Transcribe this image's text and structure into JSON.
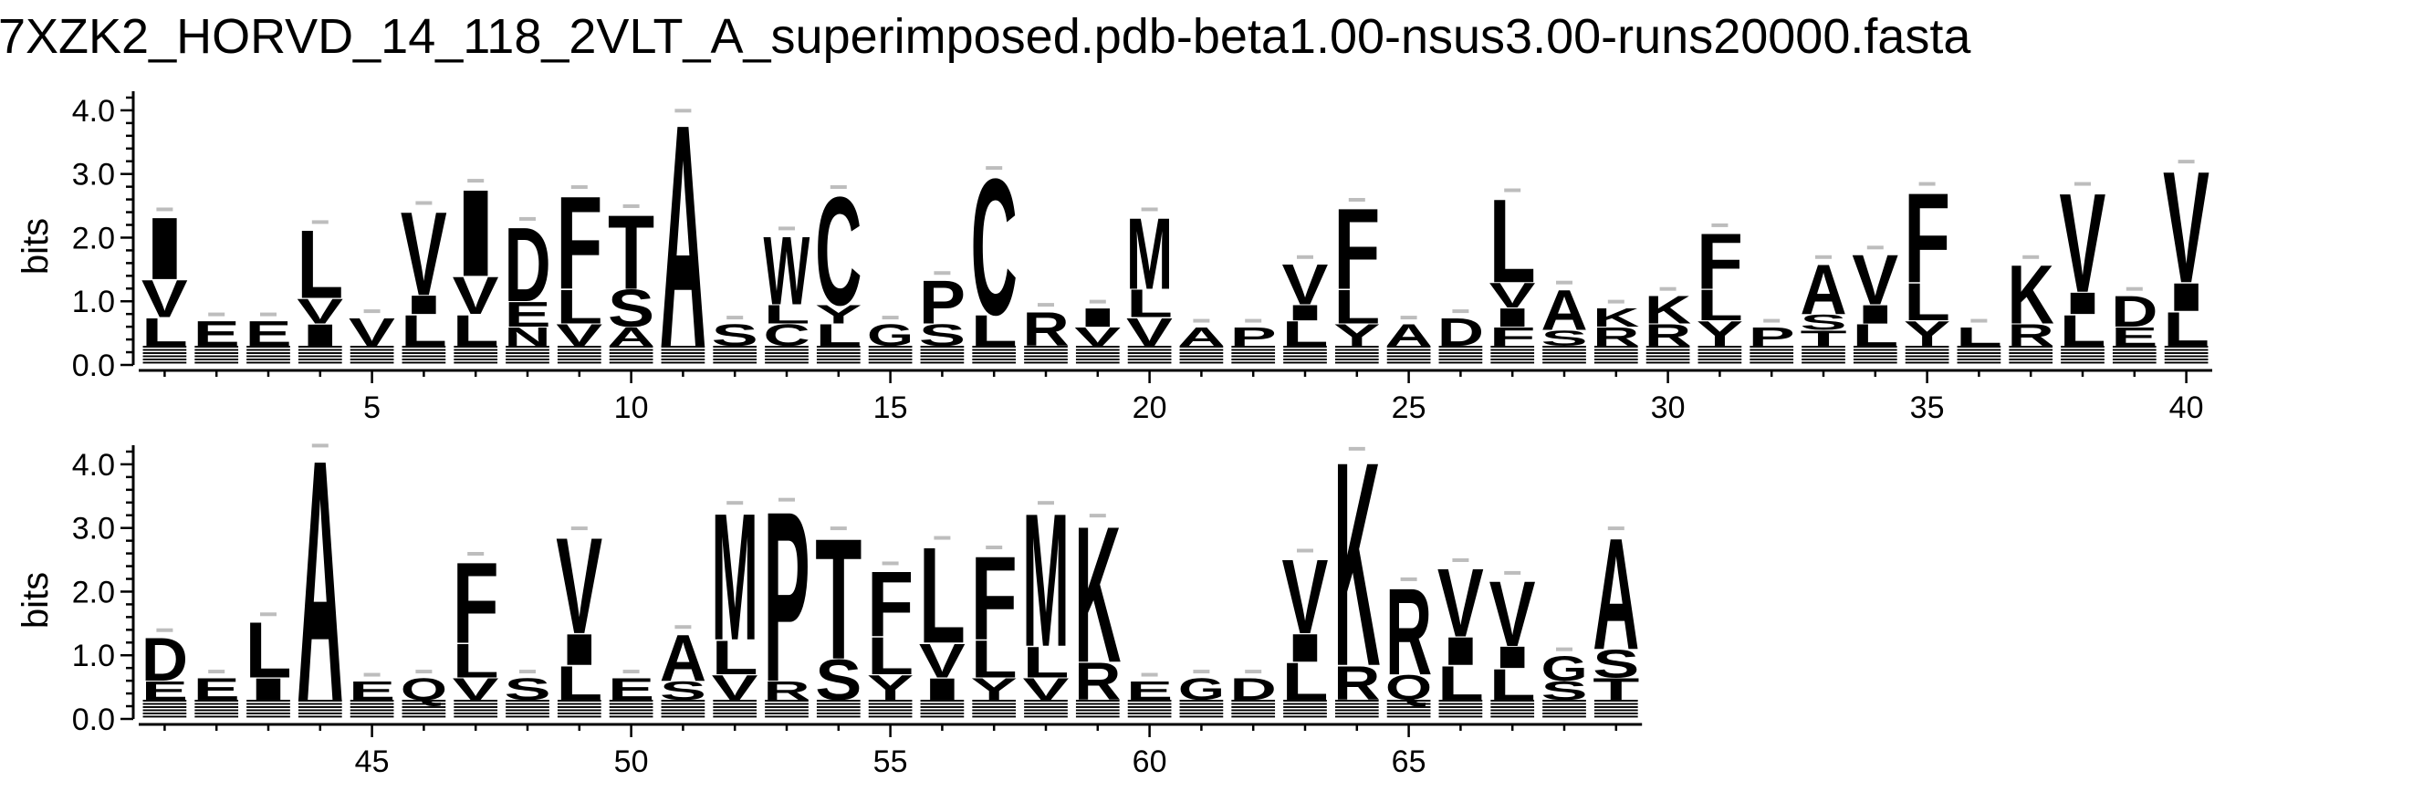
{
  "chart_data": {
    "type": "sequence-logo",
    "title": "7XZK2_HORVD_14_118_2VLT_A_superimposed.pdb-beta1.00-nsus3.00-runs20000.fasta",
    "ylabel": "bits",
    "ylim": [
      0,
      4.3
    ],
    "yticks": [
      "0.0",
      "1.0",
      "2.0",
      "3.0",
      "4.0"
    ],
    "panels": [
      {
        "xrange": [
          1,
          40
        ],
        "xticks": [
          5,
          10,
          15,
          20,
          25,
          30,
          35,
          40
        ],
        "columns": [
          {
            "pos": 1,
            "letters": [
              {
                "c": "L",
                "h": 0.45
              },
              {
                "c": "V",
                "h": 0.6
              },
              {
                "c": "I",
                "h": 1.0
              }
            ]
          },
          {
            "pos": 2,
            "letters": [
              {
                "c": "E",
                "h": 0.4
              }
            ]
          },
          {
            "pos": 3,
            "letters": [
              {
                "c": "E",
                "h": 0.4
              }
            ]
          },
          {
            "pos": 4,
            "letters": [
              {
                "c": "I",
                "h": 0.35
              },
              {
                "c": "V",
                "h": 0.4
              },
              {
                "c": "L",
                "h": 1.1
              }
            ]
          },
          {
            "pos": 5,
            "letters": [
              {
                "c": "V",
                "h": 0.45
              }
            ]
          },
          {
            "pos": 6,
            "letters": [
              {
                "c": "L",
                "h": 0.5
              },
              {
                "c": "I",
                "h": 0.3
              },
              {
                "c": "V",
                "h": 1.35
              }
            ]
          },
          {
            "pos": 7,
            "letters": [
              {
                "c": "L",
                "h": 0.5
              },
              {
                "c": "V",
                "h": 0.6
              },
              {
                "c": "I",
                "h": 1.4
              }
            ]
          },
          {
            "pos": 8,
            "letters": [
              {
                "c": "N",
                "h": 0.3
              },
              {
                "c": "E",
                "h": 0.4
              },
              {
                "c": "D",
                "h": 1.2
              }
            ]
          },
          {
            "pos": 9,
            "letters": [
              {
                "c": "V",
                "h": 0.35
              },
              {
                "c": "L",
                "h": 0.55
              },
              {
                "c": "F",
                "h": 1.5
              }
            ]
          },
          {
            "pos": 10,
            "letters": [
              {
                "c": "A",
                "h": 0.3
              },
              {
                "c": "S",
                "h": 0.6
              },
              {
                "c": "T",
                "h": 1.2
              }
            ]
          },
          {
            "pos": 11,
            "letters": [
              {
                "c": "A",
                "h": 3.6
              }
            ]
          },
          {
            "pos": 12,
            "letters": [
              {
                "c": "S",
                "h": 0.35
              }
            ]
          },
          {
            "pos": 13,
            "letters": [
              {
                "c": "C",
                "h": 0.35
              },
              {
                "c": "L",
                "h": 0.3
              },
              {
                "c": "W",
                "h": 1.1
              }
            ]
          },
          {
            "pos": 14,
            "letters": [
              {
                "c": "L",
                "h": 0.35
              },
              {
                "c": "Y",
                "h": 0.3
              },
              {
                "c": "C",
                "h": 1.75
              }
            ]
          },
          {
            "pos": 15,
            "letters": [
              {
                "c": "G",
                "h": 0.35
              }
            ]
          },
          {
            "pos": 16,
            "letters": [
              {
                "c": "S",
                "h": 0.35
              },
              {
                "c": "P",
                "h": 0.7
              }
            ]
          },
          {
            "pos": 17,
            "letters": [
              {
                "c": "L",
                "h": 0.5
              },
              {
                "c": "C",
                "h": 2.2
              }
            ]
          },
          {
            "pos": 18,
            "letters": [
              {
                "c": "R",
                "h": 0.55
              }
            ]
          },
          {
            "pos": 19,
            "letters": [
              {
                "c": "V",
                "h": 0.3
              },
              {
                "c": "I",
                "h": 0.3
              }
            ]
          },
          {
            "pos": 20,
            "letters": [
              {
                "c": "V",
                "h": 0.45
              },
              {
                "c": "L",
                "h": 0.45
              },
              {
                "c": "M",
                "h": 1.15
              }
            ]
          },
          {
            "pos": 21,
            "letters": [
              {
                "c": "A",
                "h": 0.3
              }
            ]
          },
          {
            "pos": 22,
            "letters": [
              {
                "c": "P",
                "h": 0.3
              }
            ]
          },
          {
            "pos": 23,
            "letters": [
              {
                "c": "L",
                "h": 0.4
              },
              {
                "c": "I",
                "h": 0.25
              },
              {
                "c": "V",
                "h": 0.65
              }
            ]
          },
          {
            "pos": 24,
            "letters": [
              {
                "c": "Y",
                "h": 0.35
              },
              {
                "c": "L",
                "h": 0.55
              },
              {
                "c": "F",
                "h": 1.3
              }
            ]
          },
          {
            "pos": 25,
            "letters": [
              {
                "c": "A",
                "h": 0.35
              }
            ]
          },
          {
            "pos": 26,
            "letters": [
              {
                "c": "D",
                "h": 0.45
              }
            ]
          },
          {
            "pos": 27,
            "letters": [
              {
                "c": "F",
                "h": 0.3
              },
              {
                "c": "I",
                "h": 0.3
              },
              {
                "c": "V",
                "h": 0.4
              },
              {
                "c": "L",
                "h": 1.35
              }
            ]
          },
          {
            "pos": 28,
            "letters": [
              {
                "c": "S",
                "h": 0.25
              },
              {
                "c": "A",
                "h": 0.65
              }
            ]
          },
          {
            "pos": 29,
            "letters": [
              {
                "c": "R",
                "h": 0.3
              },
              {
                "c": "K",
                "h": 0.3
              }
            ]
          },
          {
            "pos": 30,
            "letters": [
              {
                "c": "R",
                "h": 0.35
              },
              {
                "c": "K",
                "h": 0.45
              }
            ]
          },
          {
            "pos": 31,
            "letters": [
              {
                "c": "Y",
                "h": 0.4
              },
              {
                "c": "L",
                "h": 0.5
              },
              {
                "c": "F",
                "h": 0.9
              }
            ]
          },
          {
            "pos": 32,
            "letters": [
              {
                "c": "P",
                "h": 0.3
              }
            ]
          },
          {
            "pos": 33,
            "letters": [
              {
                "c": "T",
                "h": 0.25
              },
              {
                "c": "S",
                "h": 0.25
              },
              {
                "c": "A",
                "h": 0.8
              }
            ]
          },
          {
            "pos": 34,
            "letters": [
              {
                "c": "L",
                "h": 0.35
              },
              {
                "c": "I",
                "h": 0.3
              },
              {
                "c": "V",
                "h": 0.8
              }
            ]
          },
          {
            "pos": 35,
            "letters": [
              {
                "c": "Y",
                "h": 0.4
              },
              {
                "c": "L",
                "h": 0.6
              },
              {
                "c": "F",
                "h": 1.45
              }
            ]
          },
          {
            "pos": 36,
            "letters": [
              {
                "c": "L",
                "h": 0.3
              }
            ]
          },
          {
            "pos": 37,
            "letters": [
              {
                "c": "R",
                "h": 0.35
              },
              {
                "c": "K",
                "h": 0.95
              }
            ]
          },
          {
            "pos": 38,
            "letters": [
              {
                "c": "L",
                "h": 0.5
              },
              {
                "c": "I",
                "h": 0.35
              },
              {
                "c": "V",
                "h": 1.6
              }
            ]
          },
          {
            "pos": 39,
            "letters": [
              {
                "c": "E",
                "h": 0.3
              },
              {
                "c": "D",
                "h": 0.5
              }
            ]
          },
          {
            "pos": 40,
            "letters": [
              {
                "c": "L",
                "h": 0.55
              },
              {
                "c": "I",
                "h": 0.45
              },
              {
                "c": "V",
                "h": 1.8
              }
            ]
          }
        ]
      },
      {
        "xrange": [
          41,
          69
        ],
        "xticks": [
          45,
          50,
          55,
          60,
          65
        ],
        "columns": [
          {
            "pos": 41,
            "letters": [
              {
                "c": "E",
                "h": 0.3
              },
              {
                "c": "D",
                "h": 0.7
              }
            ]
          },
          {
            "pos": 42,
            "letters": [
              {
                "c": "E",
                "h": 0.35
              }
            ]
          },
          {
            "pos": 43,
            "letters": [
              {
                "c": "I",
                "h": 0.35
              },
              {
                "c": "L",
                "h": 0.9
              }
            ]
          },
          {
            "pos": 44,
            "letters": [
              {
                "c": "A",
                "h": 3.9
              }
            ]
          },
          {
            "pos": 45,
            "letters": [
              {
                "c": "E",
                "h": 0.3
              }
            ]
          },
          {
            "pos": 46,
            "letters": [
              {
                "c": "Q",
                "h": 0.35
              }
            ]
          },
          {
            "pos": 47,
            "letters": [
              {
                "c": "V",
                "h": 0.35
              },
              {
                "c": "L",
                "h": 0.55
              },
              {
                "c": "F",
                "h": 1.3
              }
            ]
          },
          {
            "pos": 48,
            "letters": [
              {
                "c": "S",
                "h": 0.35
              }
            ]
          },
          {
            "pos": 49,
            "letters": [
              {
                "c": "L",
                "h": 0.55
              },
              {
                "c": "I",
                "h": 0.5
              },
              {
                "c": "V",
                "h": 1.55
              }
            ]
          },
          {
            "pos": 50,
            "letters": [
              {
                "c": "E",
                "h": 0.35
              }
            ]
          },
          {
            "pos": 51,
            "letters": [
              {
                "c": "S",
                "h": 0.3
              },
              {
                "c": "A",
                "h": 0.75
              }
            ]
          },
          {
            "pos": 52,
            "letters": [
              {
                "c": "V",
                "h": 0.4
              },
              {
                "c": "L",
                "h": 0.55
              },
              {
                "c": "M",
                "h": 2.05
              }
            ]
          },
          {
            "pos": 53,
            "letters": [
              {
                "c": "R",
                "h": 0.3
              },
              {
                "c": "P",
                "h": 2.75
              }
            ]
          },
          {
            "pos": 54,
            "letters": [
              {
                "c": "S",
                "h": 0.65
              },
              {
                "c": "T",
                "h": 1.95
              }
            ]
          },
          {
            "pos": 55,
            "letters": [
              {
                "c": "Y",
                "h": 0.4
              },
              {
                "c": "L",
                "h": 0.6
              },
              {
                "c": "F",
                "h": 1.05
              }
            ]
          },
          {
            "pos": 56,
            "letters": [
              {
                "c": "I",
                "h": 0.35
              },
              {
                "c": "V",
                "h": 0.55
              },
              {
                "c": "L",
                "h": 1.55
              }
            ]
          },
          {
            "pos": 57,
            "letters": [
              {
                "c": "Y",
                "h": 0.35
              },
              {
                "c": "L",
                "h": 0.6
              },
              {
                "c": "F",
                "h": 1.35
              }
            ]
          },
          {
            "pos": 58,
            "letters": [
              {
                "c": "V",
                "h": 0.35
              },
              {
                "c": "L",
                "h": 0.5
              },
              {
                "c": "M",
                "h": 2.15
              }
            ]
          },
          {
            "pos": 59,
            "letters": [
              {
                "c": "R",
                "h": 0.6
              },
              {
                "c": "K",
                "h": 2.2
              }
            ]
          },
          {
            "pos": 60,
            "letters": [
              {
                "c": "E",
                "h": 0.3
              }
            ]
          },
          {
            "pos": 61,
            "letters": [
              {
                "c": "G",
                "h": 0.35
              }
            ]
          },
          {
            "pos": 62,
            "letters": [
              {
                "c": "D",
                "h": 0.35
              }
            ]
          },
          {
            "pos": 63,
            "letters": [
              {
                "c": "L",
                "h": 0.6
              },
              {
                "c": "I",
                "h": 0.45
              },
              {
                "c": "V",
                "h": 1.2
              }
            ]
          },
          {
            "pos": 64,
            "letters": [
              {
                "c": "R",
                "h": 0.55
              },
              {
                "c": "K",
                "h": 3.3
              }
            ]
          },
          {
            "pos": 65,
            "letters": [
              {
                "c": "Q",
                "h": 0.4
              },
              {
                "c": "R",
                "h": 1.4
              }
            ]
          },
          {
            "pos": 66,
            "letters": [
              {
                "c": "L",
                "h": 0.55
              },
              {
                "c": "I",
                "h": 0.45
              },
              {
                "c": "V",
                "h": 1.1
              }
            ]
          },
          {
            "pos": 67,
            "letters": [
              {
                "c": "L",
                "h": 0.5
              },
              {
                "c": "I",
                "h": 0.35
              },
              {
                "c": "V",
                "h": 1.05
              }
            ]
          },
          {
            "pos": 68,
            "letters": [
              {
                "c": "S",
                "h": 0.3
              },
              {
                "c": "G",
                "h": 0.4
              }
            ]
          },
          {
            "pos": 69,
            "letters": [
              {
                "c": "T",
                "h": 0.35
              },
              {
                "c": "S",
                "h": 0.45
              },
              {
                "c": "A",
                "h": 1.8
              }
            ]
          }
        ]
      }
    ]
  }
}
